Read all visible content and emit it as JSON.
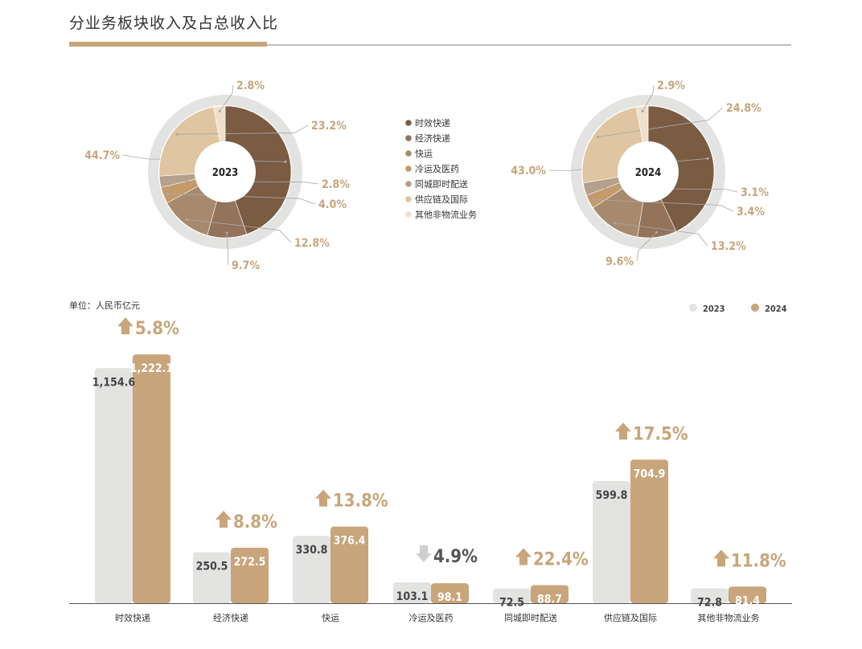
{
  "title": "分业务板块收入及占总收入比",
  "unit_label": "单位：人民币亿元",
  "colors": {
    "accent": "#c8a57a",
    "gray_bar": "#e3e3e2",
    "ring": "#e3e3e2",
    "arrow_up": "#c8a57a",
    "arrow_down": "#cfcfcf"
  },
  "chart_data": [
    {
      "type": "pie",
      "center_label": "2023",
      "slices": [
        {
          "label": "时效快递",
          "value": 44.7,
          "value_text": "44.7%",
          "color": "#7a5c43"
        },
        {
          "label": "经济快递",
          "value": 9.7,
          "value_text": "9.7%",
          "color": "#93735a"
        },
        {
          "label": "快运",
          "value": 12.8,
          "value_text": "12.8%",
          "color": "#a78a6d"
        },
        {
          "label": "冷运及医药",
          "value": 4.0,
          "value_text": "4.0%",
          "color": "#c39a68"
        },
        {
          "label": "同城即时配送",
          "value": 2.8,
          "value_text": "2.8%",
          "color": "#b79f8a"
        },
        {
          "label": "供应链及国际",
          "value": 23.2,
          "value_text": "23.2%",
          "color": "#dfc5a1"
        },
        {
          "label": "其他非物流业务",
          "value": 2.8,
          "value_text": "2.8%",
          "color": "#f0e0cb"
        }
      ]
    },
    {
      "type": "pie",
      "center_label": "2024",
      "slices": [
        {
          "label": "时效快递",
          "value": 43.0,
          "value_text": "43.0%",
          "color": "#7a5c43"
        },
        {
          "label": "经济快递",
          "value": 9.6,
          "value_text": "9.6%",
          "color": "#93735a"
        },
        {
          "label": "快运",
          "value": 13.2,
          "value_text": "13.2%",
          "color": "#a78a6d"
        },
        {
          "label": "冷运及医药",
          "value": 3.4,
          "value_text": "3.4%",
          "color": "#c39a68"
        },
        {
          "label": "同城即时配送",
          "value": 3.1,
          "value_text": "3.1%",
          "color": "#b79f8a"
        },
        {
          "label": "供应链及国际",
          "value": 24.8,
          "value_text": "24.8%",
          "color": "#dfc5a1"
        },
        {
          "label": "其他非物流业务",
          "value": 2.9,
          "value_text": "2.9%",
          "color": "#f0e0cb"
        }
      ]
    },
    {
      "type": "bar",
      "categories": [
        "时效快递",
        "经济快递",
        "快运",
        "冷运及医药",
        "同城即时配送",
        "供应链及国际",
        "其他非物流业务"
      ],
      "series": [
        {
          "name": "2023",
          "color": "#e3e3e2",
          "values": [
            1154.6,
            250.5,
            330.8,
            103.1,
            72.5,
            599.8,
            72.8
          ],
          "labels": [
            "1,154.6",
            "250.5",
            "330.8",
            "103.1",
            "72.5",
            "599.8",
            "72.8"
          ]
        },
        {
          "name": "2024",
          "color": "#c8a57a",
          "values": [
            1222.1,
            272.5,
            376.4,
            98.1,
            88.7,
            704.9,
            81.4
          ],
          "labels": [
            "1,222.1",
            "272.5",
            "376.4",
            "98.1",
            "88.7",
            "704.9",
            "81.4"
          ]
        }
      ],
      "growth": [
        {
          "text": "5.8%",
          "direction": "up"
        },
        {
          "text": "8.8%",
          "direction": "up"
        },
        {
          "text": "13.8%",
          "direction": "up"
        },
        {
          "text": "4.9%",
          "direction": "down"
        },
        {
          "text": "22.4%",
          "direction": "up"
        },
        {
          "text": "17.5%",
          "direction": "up"
        },
        {
          "text": "11.8%",
          "direction": "up"
        }
      ],
      "ylim": [
        0,
        1300
      ],
      "legend_position": "top-right"
    }
  ]
}
